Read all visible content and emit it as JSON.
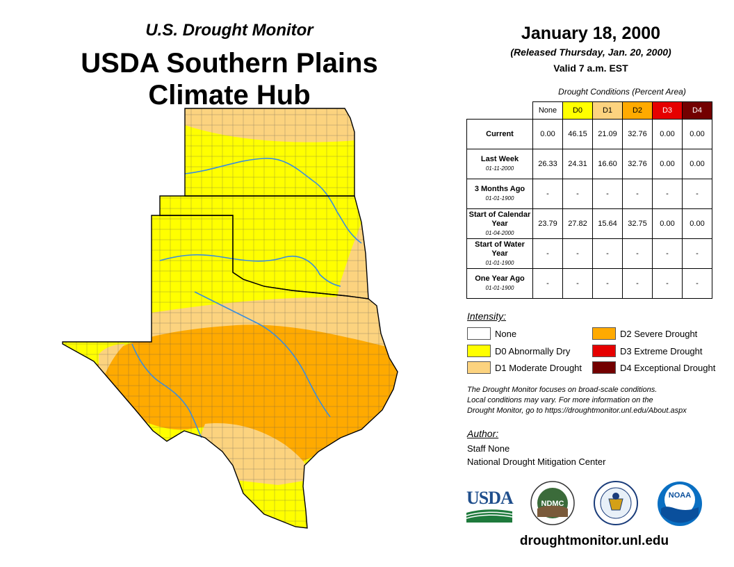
{
  "header": {
    "subtitle": "U.S. Drought Monitor",
    "title_line1": "USDA Southern Plains",
    "title_line2": "Climate Hub"
  },
  "info": {
    "date": "January 18, 2000",
    "released": "(Released Thursday, Jan. 20, 2000)",
    "valid": "Valid 7 a.m. EST"
  },
  "table": {
    "title": "Drought Conditions (Percent Area)",
    "columns": [
      "None",
      "D0",
      "D1",
      "D2",
      "D3",
      "D4"
    ],
    "rows": [
      {
        "label": "Current",
        "date": "",
        "values": [
          "0.00",
          "46.15",
          "21.09",
          "32.76",
          "0.00",
          "0.00"
        ]
      },
      {
        "label": "Last Week",
        "date": "01-11-2000",
        "values": [
          "26.33",
          "24.31",
          "16.60",
          "32.76",
          "0.00",
          "0.00"
        ]
      },
      {
        "label": "3 Months Ago",
        "date": "01-01-1900",
        "values": [
          "-",
          "-",
          "-",
          "-",
          "-",
          "-"
        ]
      },
      {
        "label": "Start of Calendar Year",
        "date": "01-04-2000",
        "values": [
          "23.79",
          "27.82",
          "15.64",
          "32.75",
          "0.00",
          "0.00"
        ]
      },
      {
        "label": "Start of Water Year",
        "date": "01-01-1900",
        "values": [
          "-",
          "-",
          "-",
          "-",
          "-",
          "-"
        ]
      },
      {
        "label": "One Year Ago",
        "date": "01-01-1900",
        "values": [
          "-",
          "-",
          "-",
          "-",
          "-",
          "-"
        ]
      }
    ]
  },
  "legend": {
    "title": "Intensity:",
    "items": [
      {
        "label": "None",
        "color": "#ffffff"
      },
      {
        "label": "D0 Abnormally Dry",
        "color": "#ffff00"
      },
      {
        "label": "D1 Moderate Drought",
        "color": "#fcd37f"
      },
      {
        "label": "D2 Severe Drought",
        "color": "#ffaa00"
      },
      {
        "label": "D3 Extreme Drought",
        "color": "#e60000"
      },
      {
        "label": "D4 Exceptional Drought",
        "color": "#730000"
      }
    ]
  },
  "note": {
    "line1": "The Drought Monitor focuses on broad-scale conditions.",
    "line2": "Local conditions may vary. For more information on the",
    "line3": "Drought Monitor, go to https://droughtmonitor.unl.edu/About.aspx"
  },
  "author": {
    "title": "Author:",
    "name": "Staff None",
    "org": "National Drought Mitigation Center"
  },
  "logos": {
    "usda": "USDA",
    "ndmc": "NDMC",
    "noaa": "NOAA"
  },
  "footer": {
    "url": "droughtmonitor.unl.edu"
  }
}
